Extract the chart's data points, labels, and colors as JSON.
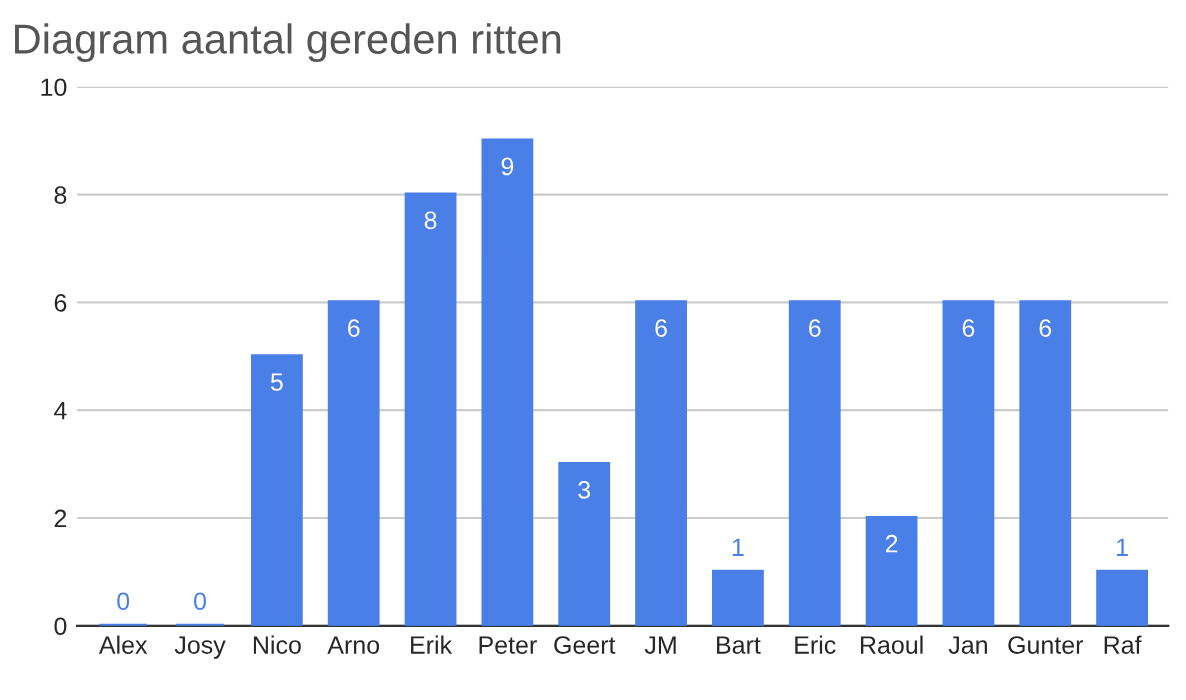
{
  "chart_data": {
    "type": "bar",
    "title": "Diagram aantal gereden ritten",
    "categories": [
      "Alex",
      "Josy",
      "Nico",
      "Arno",
      "Erik",
      "Peter",
      "Geert",
      "JM",
      "Bart",
      "Eric",
      "Raoul",
      "Jan",
      "Gunter",
      "Raf"
    ],
    "values": [
      0,
      0,
      5,
      6,
      8,
      9,
      3,
      6,
      1,
      6,
      2,
      6,
      6,
      1
    ],
    "color": "#4a7fe8",
    "ylim": [
      0,
      10
    ],
    "yticks": [
      0,
      2,
      4,
      6,
      8,
      10
    ],
    "grid": "y",
    "data_labels": true
  }
}
